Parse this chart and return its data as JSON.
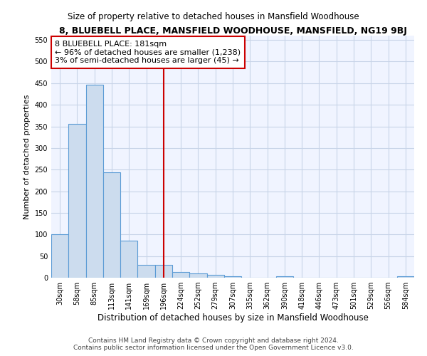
{
  "title": "8, BLUEBELL PLACE, MANSFIELD WOODHOUSE, MANSFIELD, NG19 9BJ",
  "subtitle": "Size of property relative to detached houses in Mansfield Woodhouse",
  "xlabel": "Distribution of detached houses by size in Mansfield Woodhouse",
  "ylabel": "Number of detached properties",
  "footnote1": "Contains HM Land Registry data © Crown copyright and database right 2024.",
  "footnote2": "Contains public sector information licensed under the Open Government Licence v3.0.",
  "bar_labels": [
    "30sqm",
    "58sqm",
    "85sqm",
    "113sqm",
    "141sqm",
    "169sqm",
    "196sqm",
    "224sqm",
    "252sqm",
    "279sqm",
    "307sqm",
    "335sqm",
    "362sqm",
    "390sqm",
    "418sqm",
    "446sqm",
    "473sqm",
    "501sqm",
    "529sqm",
    "556sqm",
    "584sqm"
  ],
  "bar_values": [
    100,
    355,
    447,
    243,
    85,
    30,
    30,
    14,
    10,
    6,
    4,
    0,
    0,
    4,
    0,
    0,
    0,
    0,
    0,
    0,
    4
  ],
  "bar_color": "#ccdcee",
  "bar_edge_color": "#5b9bd5",
  "vline_x": 6.0,
  "vline_color": "#cc0000",
  "annotation_line1": "8 BLUEBELL PLACE: 181sqm",
  "annotation_line2": "← 96% of detached houses are smaller (1,238)",
  "annotation_line3": "3% of semi-detached houses are larger (45) →",
  "annotation_box_facecolor": "#ffffff",
  "annotation_box_edgecolor": "#cc0000",
  "plot_bg_color": "#f0f4ff",
  "grid_color": "#c8d4e8",
  "ylim": [
    0,
    560
  ],
  "yticks": [
    0,
    50,
    100,
    150,
    200,
    250,
    300,
    350,
    400,
    450,
    500,
    550
  ],
  "title_fontsize": 9,
  "subtitle_fontsize": 8.5,
  "xlabel_fontsize": 8.5,
  "ylabel_fontsize": 8,
  "tick_fontsize": 7,
  "annotation_fontsize": 8,
  "footnote_fontsize": 6.5
}
